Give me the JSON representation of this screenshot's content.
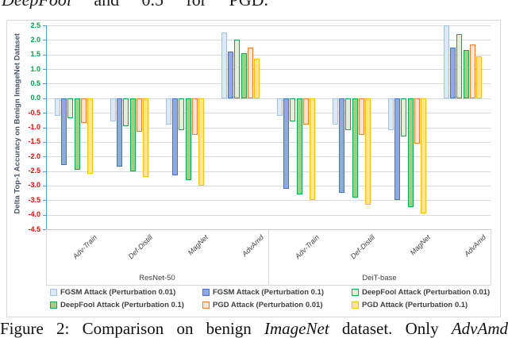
{
  "top_text_segments": [
    {
      "text": "DeepFool",
      "italic": true
    },
    {
      "text": " and 0.5 for PGD.",
      "italic": false
    }
  ],
  "caption_segments": [
    {
      "text": "Figure 2:  Comparison on benign ",
      "italic": false
    },
    {
      "text": "ImageNet",
      "italic": true
    },
    {
      "text": " dataset.  Only ",
      "italic": false
    },
    {
      "text": "AdvAmd",
      "italic": true
    }
  ],
  "chart_data": {
    "type": "bar",
    "title": "",
    "ylabel": "Delta Top-1 Accuracy on Benign ImageNet Dataset",
    "xlabel": "",
    "ylim": [
      -4.5,
      2.5
    ],
    "ytick_step": 0.5,
    "grid": true,
    "legend_position": "bottom",
    "sections": [
      {
        "label": "ResNet-50",
        "categories": [
          "Adv-Train",
          "Def-Distill",
          "MagNet",
          "AdvAmd"
        ]
      },
      {
        "label": "DeiT-base",
        "categories": [
          "Adv-Train",
          "Def-Distill",
          "MagNet",
          "AdvAmd"
        ]
      }
    ],
    "categories": [
      "Adv-Train",
      "Def-Distill",
      "MagNet",
      "AdvAmd",
      "Adv-Train",
      "Def-Distill",
      "MagNet",
      "AdvAmd"
    ],
    "series": [
      {
        "name": "FGSM Attack (Perturbation 0.01)",
        "fill": "#DEE9F7",
        "border": "#9DC3E6",
        "values": [
          -0.6,
          -0.8,
          -0.9,
          2.25,
          -0.6,
          -0.9,
          -1.1,
          2.5
        ]
      },
      {
        "name": "FGSM Attack (Perturbation 0.1)",
        "fill": "#8FAADC",
        "border": "#4472C4",
        "values": [
          -2.3,
          -2.35,
          -2.65,
          1.6,
          -3.1,
          -3.25,
          -3.5,
          1.75
        ]
      },
      {
        "name": "DeepFool Attack (Perturbation 0.01)",
        "fill": "#E2F0D9",
        "border": "#00B050",
        "values": [
          -0.7,
          -0.95,
          -1.1,
          2.0,
          -0.8,
          -1.1,
          -1.3,
          2.2
        ]
      },
      {
        "name": "DeepFool Attack (Perturbation 0.1)",
        "fill": "#A3CD86",
        "border": "#00B050",
        "values": [
          -2.45,
          -2.5,
          -2.8,
          1.55,
          -3.3,
          -3.4,
          -3.75,
          1.65
        ]
      },
      {
        "name": "PGD Attack (Perturbation 0.01)",
        "fill": "#FBE5D6",
        "border": "#ED7D31",
        "values": [
          -0.85,
          -1.15,
          -1.25,
          1.75,
          -0.9,
          -1.25,
          -1.55,
          1.85
        ]
      },
      {
        "name": "PGD Attack (Perturbation 0.1)",
        "fill": "#FFE699",
        "border": "#FFC000",
        "values": [
          -2.6,
          -2.7,
          -3.0,
          1.35,
          -3.5,
          -3.65,
          -3.95,
          1.45
        ]
      }
    ],
    "style": {
      "axis_color": "#5B9BD5",
      "grid_color": "#D9D9D9",
      "bottom_line_color": "#C9C9C9",
      "pos_tick_label_color": "#00A14B",
      "neg_tick_label_color": "#FF0000",
      "ylabel_color": "#44546A",
      "category_label_color": "#404040",
      "legend_text_color": "#404040",
      "chart_border_color": "#D9D9D9"
    }
  }
}
